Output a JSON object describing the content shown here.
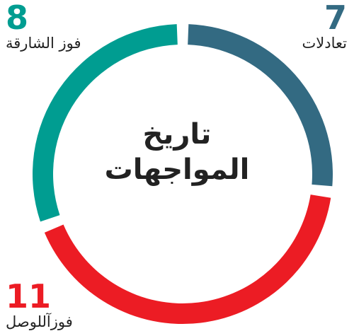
{
  "chart_data": {
    "type": "pie",
    "variant": "donut",
    "title": "تاريخ المواجهات",
    "title_lines": [
      "تاريخ",
      "المواجهات"
    ],
    "categories": [
      "تعادلات",
      "فوزآللوصل",
      "فوز الشارقة"
    ],
    "values": [
      7,
      11,
      8
    ],
    "colors": [
      "#336a82",
      "#ec1c24",
      "#009d91"
    ],
    "legend": "none",
    "labels": [
      {
        "value": "7",
        "text": "تعادلات"
      },
      {
        "value": "11",
        "text": "فوزآللوصل"
      },
      {
        "value": "8",
        "text": "فوز الشارقة"
      }
    ]
  }
}
